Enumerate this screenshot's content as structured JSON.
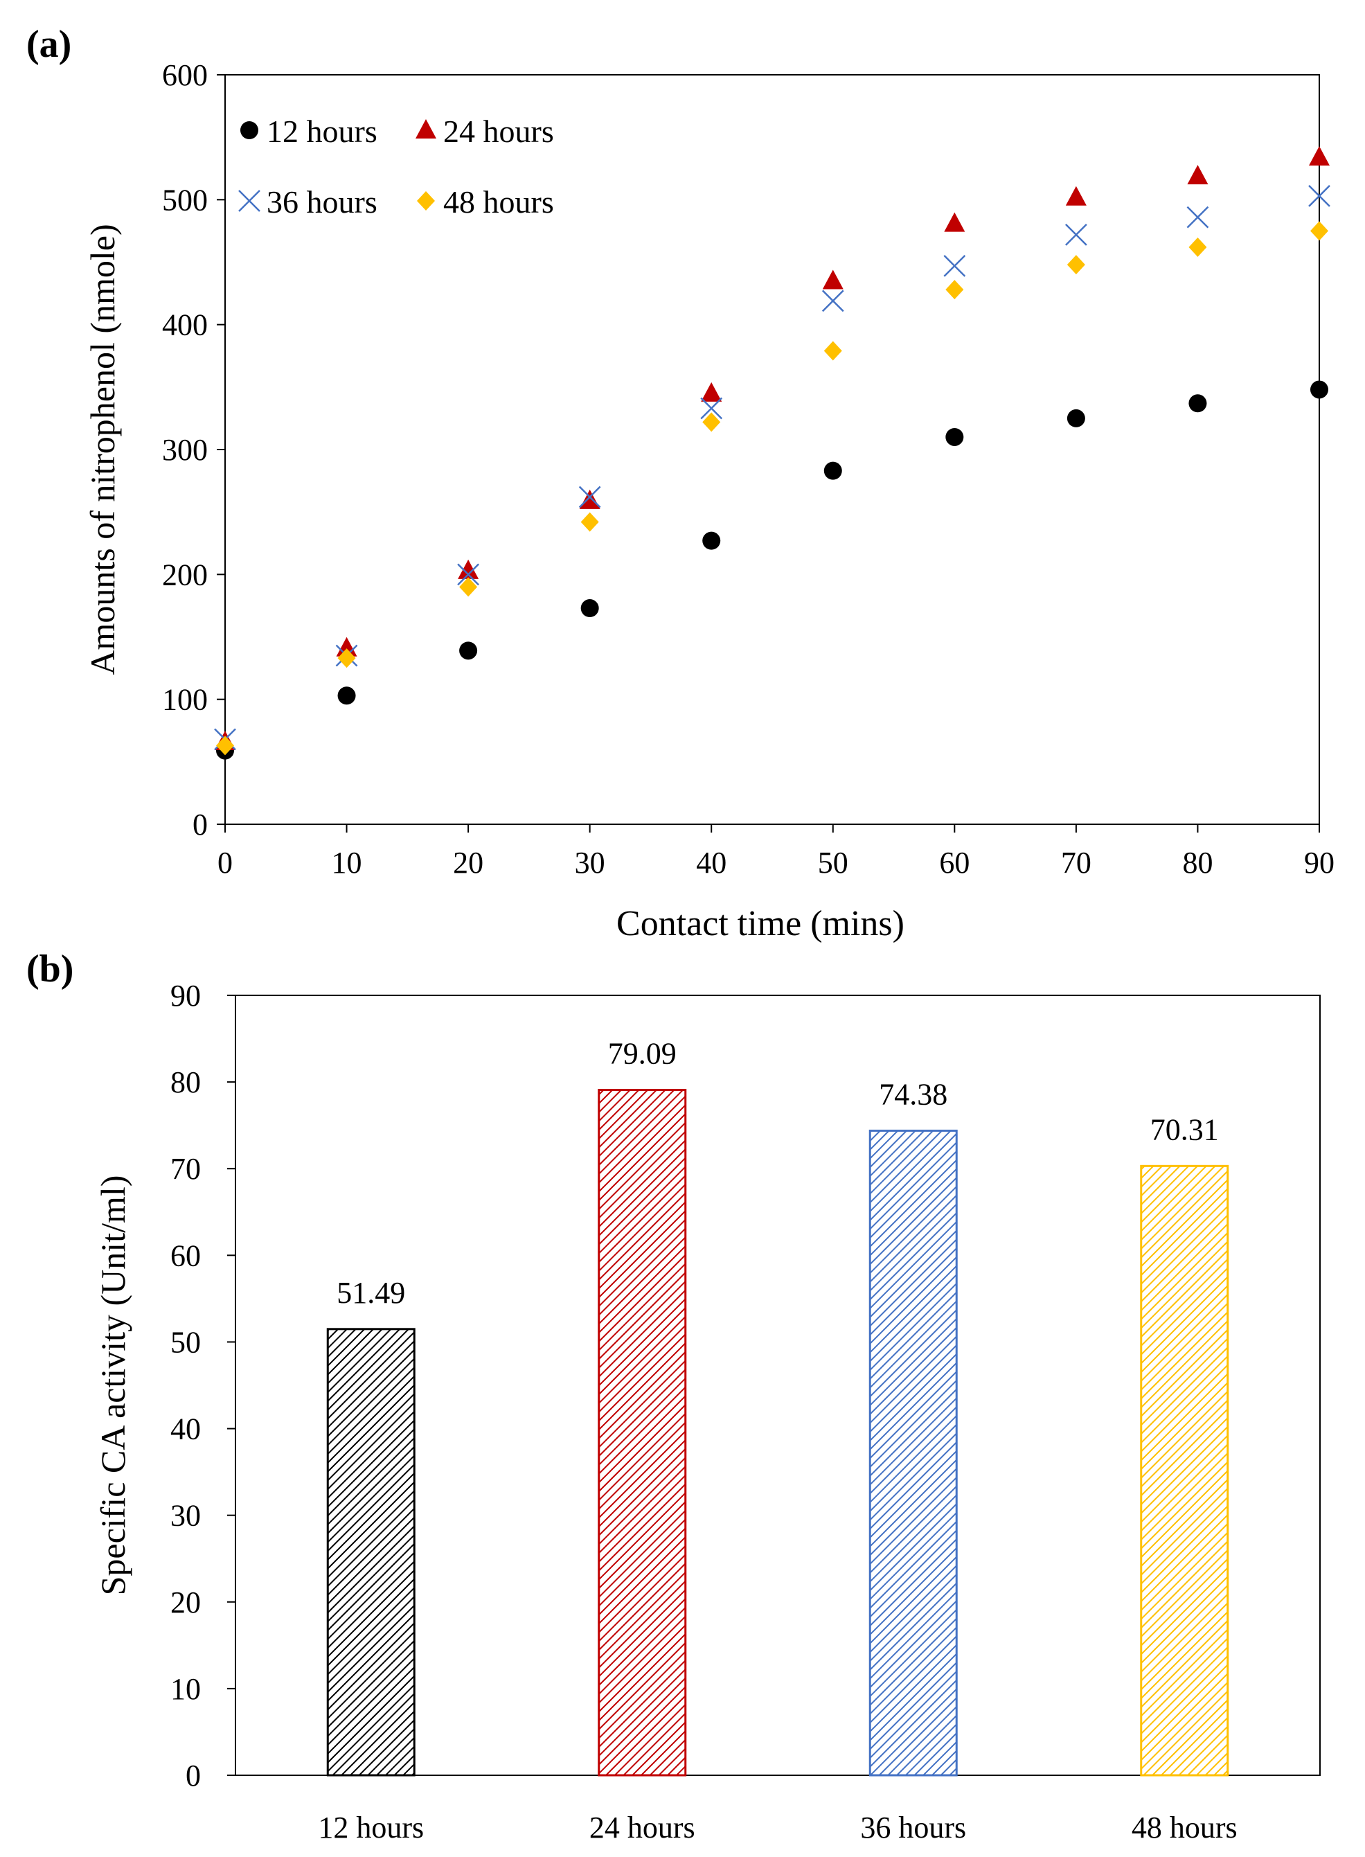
{
  "panel_a_label": "(a)",
  "panel_b_label": "(b)",
  "chart_data": [
    {
      "type": "scatter",
      "xlabel": "Contact time (mins)",
      "ylabel": "Amounts of nitrophenol  (nmole)",
      "xlim": [
        0,
        90
      ],
      "ylim": [
        0,
        600
      ],
      "xticks": [
        0,
        10,
        20,
        30,
        40,
        50,
        60,
        70,
        80,
        90
      ],
      "yticks": [
        0,
        100,
        200,
        300,
        400,
        500,
        600
      ],
      "grid": false,
      "legend_position": "top-left",
      "x": [
        0,
        10,
        20,
        30,
        40,
        50,
        60,
        70,
        80,
        90
      ],
      "series": [
        {
          "name": "12 hours",
          "marker": "circle",
          "color": "#000000",
          "values": [
            59,
            103,
            139,
            173,
            227,
            283,
            310,
            325,
            337,
            348
          ]
        },
        {
          "name": "24 hours",
          "marker": "triangle",
          "color": "#c00000",
          "values": [
            66,
            141,
            203,
            259,
            345,
            435,
            481,
            502,
            519,
            534
          ]
        },
        {
          "name": "36 hours",
          "marker": "x",
          "color": "#4472c4",
          "values": [
            68,
            135,
            200,
            262,
            333,
            419,
            447,
            472,
            486,
            503
          ]
        },
        {
          "name": "48 hours",
          "marker": "diamond",
          "color": "#ffc000",
          "values": [
            63,
            133,
            190,
            242,
            322,
            379,
            428,
            448,
            462,
            475
          ]
        }
      ]
    },
    {
      "type": "bar",
      "ylabel": "Specific CA activity (Unit/ml)",
      "xlabel": "",
      "ylim": [
        0,
        90
      ],
      "yticks": [
        0,
        10,
        20,
        30,
        40,
        50,
        60,
        70,
        80,
        90
      ],
      "grid": false,
      "categories": [
        "12 hours",
        "24 hours",
        "36 hours",
        "48 hours"
      ],
      "values": [
        51.49,
        79.09,
        74.38,
        70.31
      ],
      "data_labels": [
        "51.49",
        "79.09",
        "74.38",
        "70.31"
      ],
      "colors": [
        "#000000",
        "#c00000",
        "#4472c4",
        "#ffc000"
      ],
      "fill": "diagonal-hatch"
    }
  ]
}
